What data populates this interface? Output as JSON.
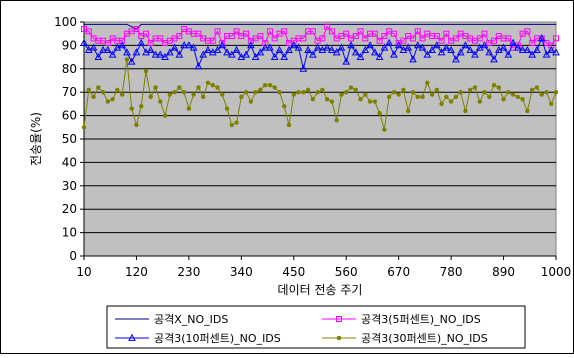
{
  "chart_data": {
    "type": "line",
    "title": "",
    "xlabel": "데이터 전송 주기",
    "ylabel": "전송율(%)",
    "xlim": [
      10,
      1000
    ],
    "ylim": [
      0,
      100
    ],
    "x_ticks": [
      10,
      120,
      230,
      340,
      450,
      560,
      670,
      780,
      890,
      1000
    ],
    "y_ticks": [
      0,
      10,
      20,
      30,
      40,
      50,
      60,
      70,
      80,
      90,
      100
    ],
    "grid": "horizontal",
    "plot_background": "#c0c0c0",
    "legend_position": "bottom",
    "point_step": 10,
    "series": [
      {
        "name": "공격X_NO_IDS",
        "color": "#000080",
        "marker": "none",
        "values": [
          99,
          99,
          99,
          99,
          99,
          99,
          99,
          99,
          99,
          99,
          98,
          97,
          99,
          99,
          99,
          99,
          99,
          99,
          99,
          99,
          99,
          99,
          99,
          99,
          99,
          99,
          99,
          99,
          99,
          99,
          99,
          99,
          99,
          99,
          99,
          99,
          99,
          99,
          99,
          99,
          99,
          99,
          99,
          99,
          99,
          99,
          99,
          99,
          99,
          99,
          99,
          99,
          99,
          99,
          99,
          99,
          99,
          99,
          99,
          99,
          99,
          99,
          99,
          99,
          99,
          99,
          99,
          99,
          99,
          99,
          99,
          99,
          99,
          99,
          99,
          99,
          99,
          99,
          99,
          99,
          99,
          99,
          99,
          99,
          99,
          99,
          99,
          99,
          99,
          99,
          99,
          99,
          99,
          99,
          99,
          99,
          99,
          99,
          99,
          99
        ]
      },
      {
        "name": "공격3(5퍼센트)_NO_IDS",
        "color": "#ff00ff",
        "marker": "square",
        "values": [
          97,
          96,
          93,
          92,
          92,
          91,
          93,
          92,
          92,
          95,
          96,
          97,
          94,
          95,
          91,
          93,
          93,
          91,
          92,
          93,
          94,
          97,
          96,
          95,
          95,
          93,
          92,
          92,
          96,
          91,
          94,
          94,
          96,
          94,
          95,
          92,
          93,
          94,
          91,
          96,
          93,
          95,
          96,
          91,
          92,
          93,
          93,
          96,
          96,
          92,
          93,
          98,
          96,
          93,
          94,
          95,
          93,
          94,
          96,
          93,
          95,
          95,
          92,
          94,
          96,
          95,
          91,
          92,
          94,
          93,
          96,
          93,
          95,
          94,
          94,
          92,
          95,
          92,
          93,
          95,
          94,
          93,
          92,
          93,
          95,
          91,
          92,
          94,
          93,
          93,
          89,
          90,
          95,
          96,
          91,
          93,
          93,
          91,
          90,
          93
        ]
      },
      {
        "name": "공격3(10퍼센트)_NO_IDS",
        "color": "#0000ff",
        "marker": "triangle",
        "values": [
          91,
          88,
          89,
          85,
          88,
          88,
          86,
          89,
          90,
          87,
          83,
          87,
          91,
          87,
          88,
          86,
          86,
          85,
          87,
          89,
          86,
          90,
          90,
          89,
          81,
          86,
          88,
          87,
          88,
          90,
          87,
          86,
          88,
          85,
          86,
          90,
          85,
          87,
          89,
          89,
          85,
          88,
          85,
          88,
          90,
          89,
          80,
          88,
          86,
          89,
          88,
          89,
          88,
          87,
          89,
          83,
          90,
          87,
          85,
          88,
          90,
          87,
          85,
          89,
          91,
          86,
          90,
          88,
          89,
          84,
          90,
          89,
          86,
          88,
          90,
          87,
          89,
          88,
          84,
          87,
          90,
          88,
          86,
          89,
          90,
          87,
          84,
          88,
          89,
          86,
          91,
          89,
          88,
          88,
          86,
          88,
          93,
          86,
          88,
          87
        ]
      },
      {
        "name": "공격3(30퍼센트)_NO_IDS",
        "color": "#808000",
        "marker": "circle",
        "values": [
          55,
          71,
          68,
          72,
          70,
          66,
          67,
          71,
          69,
          84,
          63,
          56,
          64,
          79,
          68,
          72,
          66,
          60,
          69,
          70,
          72,
          70,
          63,
          69,
          72,
          68,
          74,
          73,
          72,
          69,
          63,
          56,
          57,
          68,
          70,
          66,
          70,
          71,
          73,
          73,
          72,
          70,
          64,
          56,
          69,
          70,
          70,
          71,
          67,
          70,
          71,
          67,
          66,
          58,
          69,
          70,
          72,
          71,
          67,
          69,
          66,
          66,
          61,
          54,
          68,
          70,
          69,
          71,
          62,
          70,
          68,
          68,
          74,
          69,
          71,
          65,
          68,
          66,
          68,
          70,
          62,
          71,
          72,
          66,
          70,
          68,
          73,
          72,
          67,
          70,
          69,
          68,
          67,
          62,
          71,
          72,
          69,
          70,
          65,
          70
        ]
      }
    ]
  }
}
